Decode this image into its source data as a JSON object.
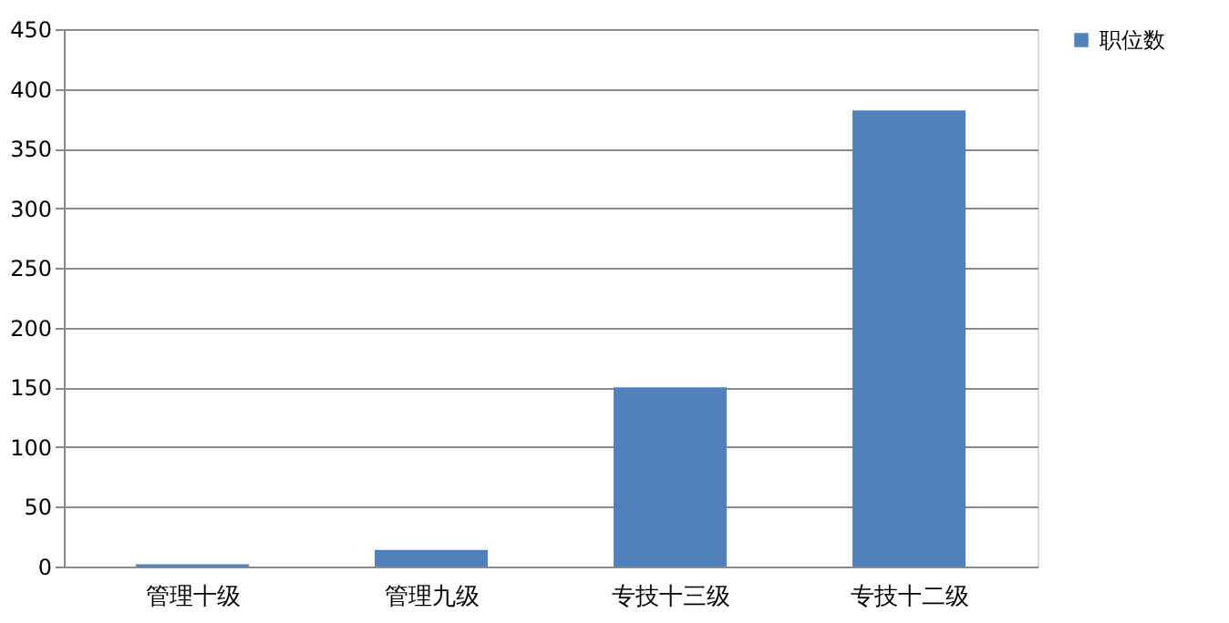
{
  "chart_data": {
    "type": "bar",
    "categories": [
      "管理十级",
      "管理九级",
      "专技十三级",
      "专技十二级"
    ],
    "series": [
      {
        "name": "职位数",
        "color": "#4f81bd",
        "values": [
          2,
          14,
          150,
          382
        ]
      }
    ],
    "ylim": [
      0,
      450
    ],
    "yticks": [
      0,
      50,
      100,
      150,
      200,
      250,
      300,
      350,
      400,
      450
    ],
    "grid": "y",
    "legend": "right"
  }
}
